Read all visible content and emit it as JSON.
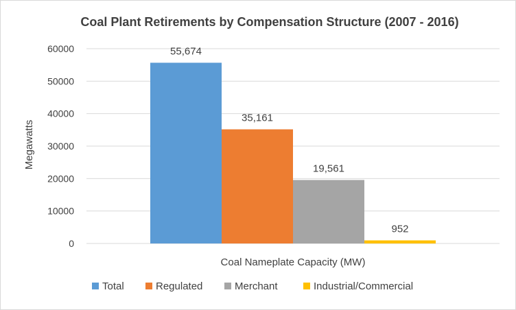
{
  "chart_data": {
    "type": "bar",
    "title": "Coal Plant Retirements by Compensation Structure (2007 - 2016)",
    "xlabel": "Coal Nameplate Capacity (MW)",
    "ylabel": "Megawatts",
    "categories": [
      "Coal Nameplate Capacity (MW)"
    ],
    "series": [
      {
        "name": "Total",
        "values": [
          55674
        ],
        "label": "55,674",
        "color": "#5b9bd5"
      },
      {
        "name": "Regulated",
        "values": [
          35161
        ],
        "label": "35,161",
        "color": "#ed7d31"
      },
      {
        "name": "Merchant",
        "values": [
          19561
        ],
        "label": "19,561",
        "color": "#a5a5a5"
      },
      {
        "name": "Industrial/Commercial",
        "values": [
          952
        ],
        "label": "952",
        "color": "#ffc000"
      }
    ],
    "ylim": [
      0,
      60000
    ],
    "yticks": [
      "0",
      "10000",
      "20000",
      "30000",
      "40000",
      "50000",
      "60000"
    ],
    "grid": true,
    "legend_position": "bottom"
  }
}
